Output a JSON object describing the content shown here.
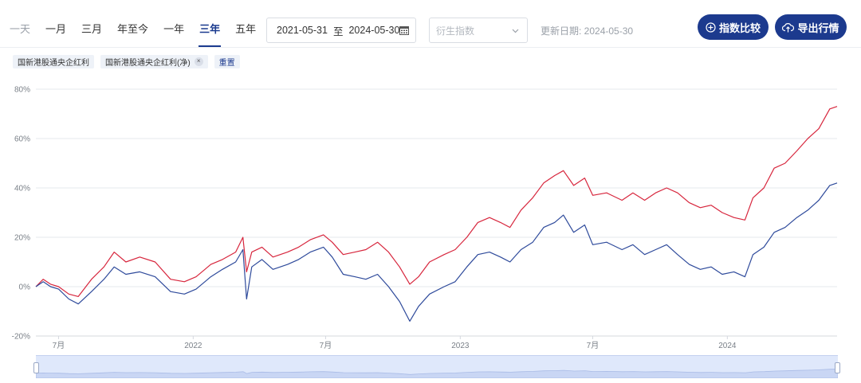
{
  "toolbar": {
    "periods": [
      {
        "label": "一天",
        "state": "muted"
      },
      {
        "label": "一月",
        "state": "normal"
      },
      {
        "label": "三月",
        "state": "normal"
      },
      {
        "label": "年至今",
        "state": "normal"
      },
      {
        "label": "一年",
        "state": "normal"
      },
      {
        "label": "三年",
        "state": "active"
      },
      {
        "label": "五年",
        "state": "normal"
      }
    ],
    "date_start": "2021-05-31",
    "date_sep": "至",
    "date_end": "2024-05-30",
    "derived_placeholder": "衍生指数",
    "update_label": "更新日期: 2024-05-30",
    "compare_button": "指数比较",
    "export_button": "导出行情"
  },
  "tags": {
    "series_a": "国新港股通央企红利",
    "series_b": "国新港股通央企红利(净)",
    "close_symbol": "×",
    "reset": "重置"
  },
  "colors": {
    "accent": "#1c3a8e",
    "total_return_line": "#d7263d",
    "net_line": "#2e4a9b",
    "grid": "#e6e8ec",
    "navigator_fill": "#dfe8fb"
  },
  "chart_data": {
    "type": "line",
    "x_start": "2021-05-31",
    "x_end": "2024-05-30",
    "xtick_labels": [
      {
        "date": "2021-07-01",
        "label": "7月"
      },
      {
        "date": "2022-01-01",
        "label": "2022"
      },
      {
        "date": "2022-07-01",
        "label": "7月"
      },
      {
        "date": "2023-01-01",
        "label": "2023"
      },
      {
        "date": "2023-07-01",
        "label": "7月"
      },
      {
        "date": "2024-01-01",
        "label": "2024"
      }
    ],
    "ylim": [
      -20,
      80
    ],
    "yticks": [
      -20,
      0,
      20,
      40,
      60,
      80
    ],
    "y_tick_suffix": "%",
    "grid": true,
    "series": [
      {
        "name": "国新港股通央企红利",
        "color": "#d7263d",
        "points": [
          [
            "2021-05-31",
            0
          ],
          [
            "2021-06-10",
            3
          ],
          [
            "2021-06-20",
            1
          ],
          [
            "2021-07-01",
            0
          ],
          [
            "2021-07-15",
            -3
          ],
          [
            "2021-07-28",
            -4
          ],
          [
            "2021-08-15",
            3
          ],
          [
            "2021-09-01",
            8
          ],
          [
            "2021-09-15",
            14
          ],
          [
            "2021-10-01",
            10
          ],
          [
            "2021-10-20",
            12
          ],
          [
            "2021-11-10",
            10
          ],
          [
            "2021-12-01",
            3
          ],
          [
            "2021-12-20",
            2
          ],
          [
            "2022-01-05",
            4
          ],
          [
            "2022-01-25",
            9
          ],
          [
            "2022-02-10",
            11
          ],
          [
            "2022-02-28",
            14
          ],
          [
            "2022-03-10",
            20
          ],
          [
            "2022-03-15",
            6
          ],
          [
            "2022-03-22",
            14
          ],
          [
            "2022-04-05",
            16
          ],
          [
            "2022-04-20",
            12
          ],
          [
            "2022-05-10",
            14
          ],
          [
            "2022-05-25",
            16
          ],
          [
            "2022-06-10",
            19
          ],
          [
            "2022-06-28",
            21
          ],
          [
            "2022-07-10",
            18
          ],
          [
            "2022-07-25",
            13
          ],
          [
            "2022-08-10",
            14
          ],
          [
            "2022-08-25",
            15
          ],
          [
            "2022-09-10",
            18
          ],
          [
            "2022-09-25",
            14
          ],
          [
            "2022-10-10",
            8
          ],
          [
            "2022-10-24",
            1
          ],
          [
            "2022-11-05",
            4
          ],
          [
            "2022-11-20",
            10
          ],
          [
            "2022-12-10",
            13
          ],
          [
            "2022-12-25",
            15
          ],
          [
            "2023-01-10",
            20
          ],
          [
            "2023-01-25",
            26
          ],
          [
            "2023-02-10",
            28
          ],
          [
            "2023-02-25",
            26
          ],
          [
            "2023-03-10",
            24
          ],
          [
            "2023-03-25",
            31
          ],
          [
            "2023-04-10",
            36
          ],
          [
            "2023-04-25",
            42
          ],
          [
            "2023-05-10",
            45
          ],
          [
            "2023-05-22",
            47
          ],
          [
            "2023-06-05",
            41
          ],
          [
            "2023-06-20",
            44
          ],
          [
            "2023-07-01",
            37
          ],
          [
            "2023-07-20",
            38
          ],
          [
            "2023-08-10",
            35
          ],
          [
            "2023-08-25",
            38
          ],
          [
            "2023-09-10",
            35
          ],
          [
            "2023-09-25",
            38
          ],
          [
            "2023-10-10",
            40
          ],
          [
            "2023-10-25",
            38
          ],
          [
            "2023-11-10",
            34
          ],
          [
            "2023-11-25",
            32
          ],
          [
            "2023-12-10",
            33
          ],
          [
            "2023-12-25",
            30
          ],
          [
            "2024-01-10",
            28
          ],
          [
            "2024-01-25",
            27
          ],
          [
            "2024-02-05",
            36
          ],
          [
            "2024-02-20",
            40
          ],
          [
            "2024-03-05",
            48
          ],
          [
            "2024-03-20",
            50
          ],
          [
            "2024-04-05",
            55
          ],
          [
            "2024-04-20",
            60
          ],
          [
            "2024-05-05",
            64
          ],
          [
            "2024-05-20",
            72
          ],
          [
            "2024-05-30",
            73
          ]
        ]
      },
      {
        "name": "国新港股通央企红利(净)",
        "color": "#2e4a9b",
        "points": [
          [
            "2021-05-31",
            0
          ],
          [
            "2021-06-10",
            2
          ],
          [
            "2021-06-20",
            0
          ],
          [
            "2021-07-01",
            -1
          ],
          [
            "2021-07-15",
            -5
          ],
          [
            "2021-07-28",
            -7
          ],
          [
            "2021-08-15",
            -2
          ],
          [
            "2021-09-01",
            3
          ],
          [
            "2021-09-15",
            8
          ],
          [
            "2021-10-01",
            5
          ],
          [
            "2021-10-20",
            6
          ],
          [
            "2021-11-10",
            4
          ],
          [
            "2021-12-01",
            -2
          ],
          [
            "2021-12-20",
            -3
          ],
          [
            "2022-01-05",
            -1
          ],
          [
            "2022-01-25",
            4
          ],
          [
            "2022-02-10",
            7
          ],
          [
            "2022-02-28",
            10
          ],
          [
            "2022-03-10",
            15
          ],
          [
            "2022-03-15",
            -5
          ],
          [
            "2022-03-22",
            8
          ],
          [
            "2022-04-05",
            11
          ],
          [
            "2022-04-20",
            7
          ],
          [
            "2022-05-10",
            9
          ],
          [
            "2022-05-25",
            11
          ],
          [
            "2022-06-10",
            14
          ],
          [
            "2022-06-28",
            16
          ],
          [
            "2022-07-10",
            12
          ],
          [
            "2022-07-25",
            5
          ],
          [
            "2022-08-10",
            4
          ],
          [
            "2022-08-25",
            3
          ],
          [
            "2022-09-10",
            5
          ],
          [
            "2022-09-25",
            0
          ],
          [
            "2022-10-10",
            -6
          ],
          [
            "2022-10-24",
            -14
          ],
          [
            "2022-11-05",
            -8
          ],
          [
            "2022-11-20",
            -3
          ],
          [
            "2022-12-10",
            0
          ],
          [
            "2022-12-25",
            2
          ],
          [
            "2023-01-10",
            8
          ],
          [
            "2023-01-25",
            13
          ],
          [
            "2023-02-10",
            14
          ],
          [
            "2023-02-25",
            12
          ],
          [
            "2023-03-10",
            10
          ],
          [
            "2023-03-25",
            15
          ],
          [
            "2023-04-10",
            18
          ],
          [
            "2023-04-25",
            24
          ],
          [
            "2023-05-10",
            26
          ],
          [
            "2023-05-22",
            29
          ],
          [
            "2023-06-05",
            22
          ],
          [
            "2023-06-20",
            25
          ],
          [
            "2023-07-01",
            17
          ],
          [
            "2023-07-20",
            18
          ],
          [
            "2023-08-10",
            15
          ],
          [
            "2023-08-25",
            17
          ],
          [
            "2023-09-10",
            13
          ],
          [
            "2023-09-25",
            15
          ],
          [
            "2023-10-10",
            17
          ],
          [
            "2023-10-25",
            13
          ],
          [
            "2023-11-10",
            9
          ],
          [
            "2023-11-25",
            7
          ],
          [
            "2023-12-10",
            8
          ],
          [
            "2023-12-25",
            5
          ],
          [
            "2024-01-10",
            6
          ],
          [
            "2024-01-25",
            4
          ],
          [
            "2024-02-05",
            13
          ],
          [
            "2024-02-20",
            16
          ],
          [
            "2024-03-05",
            22
          ],
          [
            "2024-03-20",
            24
          ],
          [
            "2024-04-05",
            28
          ],
          [
            "2024-04-20",
            31
          ],
          [
            "2024-05-05",
            35
          ],
          [
            "2024-05-20",
            41
          ],
          [
            "2024-05-30",
            42
          ]
        ]
      }
    ]
  }
}
